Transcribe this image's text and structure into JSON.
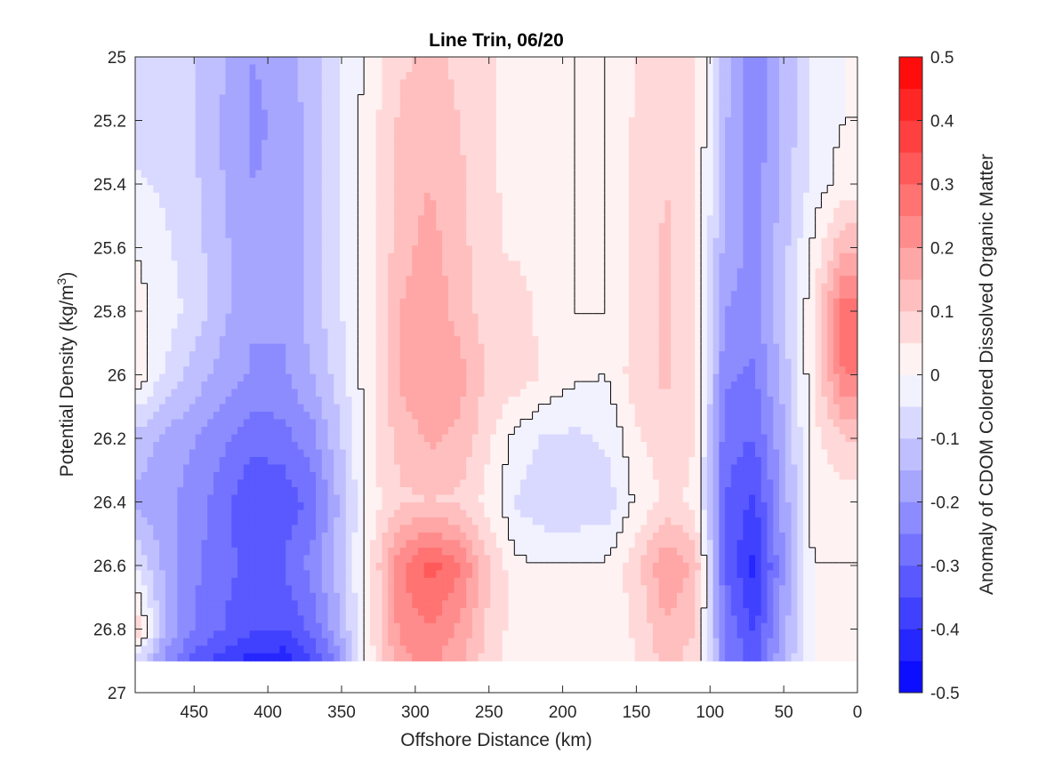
{
  "chart_data": {
    "type": "heatmap",
    "subtype": "filled-contour",
    "title": "Line Trin, 06/20",
    "xlabel": "Offshore Distance (km)",
    "ylabel_main": "Potential Density (kg/m",
    "ylabel_sup": "3",
    "ylabel_close": ")",
    "colorbar_label": "Anomaly of CDOM Colored Dissolved Organic Matter",
    "x_axis": {
      "range": [
        490,
        0
      ],
      "reversed": true,
      "ticks": [
        "450",
        "400",
        "350",
        "300",
        "250",
        "200",
        "150",
        "100",
        "50",
        "0"
      ],
      "tick_values": [
        450,
        400,
        350,
        300,
        250,
        200,
        150,
        100,
        50,
        0
      ]
    },
    "y_axis": {
      "range": [
        25,
        27
      ],
      "reversed": true,
      "ticks": [
        "25",
        "25.2",
        "25.4",
        "25.6",
        "25.8",
        "26",
        "26.2",
        "26.4",
        "26.6",
        "26.8",
        "27"
      ],
      "tick_values": [
        25,
        25.2,
        25.4,
        25.6,
        25.8,
        26,
        26.2,
        26.4,
        26.6,
        26.8,
        27
      ]
    },
    "colorbar": {
      "range": [
        -0.5,
        0.5
      ],
      "ticks": [
        "0.5",
        "0.4",
        "0.3",
        "0.2",
        "0.1",
        "0",
        "-0.1",
        "-0.2",
        "-0.3",
        "-0.4",
        "-0.5"
      ],
      "tick_values": [
        0.5,
        0.4,
        0.3,
        0.2,
        0.1,
        0,
        -0.1,
        -0.2,
        -0.3,
        -0.4,
        -0.5
      ],
      "levels": 20,
      "colormap": "blue-white-red"
    },
    "data_extent": {
      "x": [
        490,
        0
      ],
      "y": [
        25,
        26.9
      ]
    },
    "x": [
      490,
      470,
      450,
      430,
      410,
      390,
      370,
      350,
      330,
      310,
      290,
      270,
      250,
      230,
      210,
      190,
      170,
      150,
      130,
      110,
      90,
      70,
      50,
      30,
      10
    ],
    "y": [
      25.0,
      25.2,
      25.4,
      25.6,
      25.8,
      26.0,
      26.2,
      26.4,
      26.6,
      26.8,
      26.9
    ],
    "z": [
      [
        -0.08,
        -0.08,
        -0.1,
        -0.14,
        -0.2,
        -0.18,
        -0.12,
        -0.05,
        0.02,
        0.09,
        0.11,
        0.09,
        0.06,
        0.03,
        0.01,
        0.0,
        0.0,
        0.05,
        0.09,
        0.06,
        -0.12,
        -0.24,
        -0.14,
        -0.04,
        0.0
      ],
      [
        -0.07,
        -0.08,
        -0.1,
        -0.16,
        -0.21,
        -0.19,
        -0.13,
        -0.05,
        0.03,
        0.11,
        0.13,
        0.1,
        0.06,
        0.03,
        0.01,
        0.0,
        0.0,
        0.06,
        0.1,
        0.06,
        -0.14,
        -0.24,
        -0.14,
        -0.04,
        0.0
      ],
      [
        -0.04,
        -0.06,
        -0.09,
        -0.15,
        -0.2,
        -0.19,
        -0.13,
        -0.05,
        0.03,
        0.12,
        0.15,
        0.11,
        0.06,
        0.03,
        0.01,
        0.0,
        0.0,
        0.06,
        0.1,
        0.06,
        -0.15,
        -0.23,
        -0.13,
        -0.03,
        0.02
      ],
      [
        0.0,
        -0.04,
        -0.08,
        -0.14,
        -0.19,
        -0.19,
        -0.13,
        -0.05,
        0.03,
        0.13,
        0.17,
        0.12,
        0.06,
        0.04,
        0.01,
        0.0,
        0.0,
        0.06,
        0.11,
        0.06,
        -0.17,
        -0.22,
        -0.12,
        0.01,
        0.14
      ],
      [
        0.02,
        -0.02,
        -0.07,
        -0.14,
        -0.19,
        -0.19,
        -0.13,
        -0.05,
        0.04,
        0.15,
        0.19,
        0.13,
        0.07,
        0.08,
        0.02,
        0.0,
        0.0,
        0.07,
        0.11,
        0.06,
        -0.2,
        -0.22,
        -0.11,
        0.04,
        0.28
      ],
      [
        0.04,
        -0.06,
        -0.12,
        -0.17,
        -0.21,
        -0.21,
        -0.15,
        -0.07,
        0.04,
        0.16,
        0.2,
        0.17,
        0.09,
        0.08,
        0.04,
        0.01,
        0.0,
        0.08,
        0.11,
        0.06,
        -0.24,
        -0.26,
        -0.13,
        0.04,
        0.25
      ],
      [
        -0.12,
        -0.16,
        -0.2,
        -0.24,
        -0.28,
        -0.27,
        -0.22,
        -0.1,
        0.04,
        0.12,
        0.16,
        0.14,
        0.06,
        -0.02,
        -0.06,
        -0.06,
        -0.04,
        0.04,
        0.08,
        0.05,
        -0.28,
        -0.3,
        -0.16,
        0.03,
        0.1
      ],
      [
        -0.16,
        -0.19,
        -0.22,
        -0.28,
        -0.35,
        -0.34,
        -0.28,
        -0.13,
        0.03,
        0.09,
        0.1,
        0.09,
        0.03,
        -0.06,
        -0.09,
        -0.09,
        -0.08,
        0.01,
        0.06,
        0.04,
        -0.3,
        -0.36,
        -0.18,
        0.02,
        0.02
      ],
      [
        -0.05,
        -0.16,
        -0.24,
        -0.29,
        -0.31,
        -0.3,
        -0.23,
        -0.12,
        0.05,
        0.24,
        0.32,
        0.26,
        0.1,
        0.01,
        0.0,
        0.0,
        0.01,
        0.08,
        0.2,
        0.14,
        -0.3,
        -0.42,
        -0.2,
        0.0,
        0.0
      ],
      [
        0.1,
        -0.15,
        -0.25,
        -0.3,
        -0.34,
        -0.35,
        -0.29,
        -0.14,
        0.04,
        0.22,
        0.25,
        0.19,
        0.09,
        0.02,
        0.02,
        0.01,
        0.01,
        0.06,
        0.14,
        0.1,
        -0.26,
        -0.36,
        -0.17,
        0.0,
        0.0
      ],
      [
        -0.05,
        -0.22,
        -0.32,
        -0.38,
        -0.42,
        -0.43,
        -0.36,
        -0.2,
        0.04,
        0.18,
        0.22,
        0.16,
        0.07,
        0.02,
        0.01,
        0.0,
        0.0,
        0.05,
        0.12,
        0.08,
        -0.24,
        -0.32,
        -0.15,
        0.0,
        0.0
      ]
    ]
  }
}
